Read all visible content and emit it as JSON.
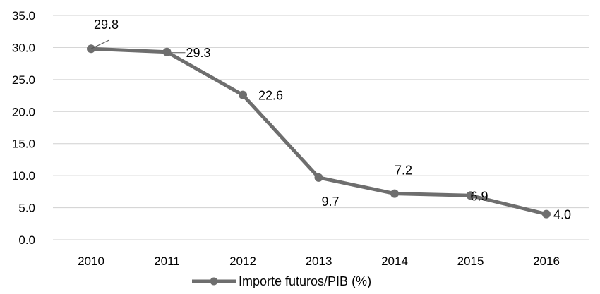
{
  "chart_data": {
    "type": "line",
    "categories": [
      "2010",
      "2011",
      "2012",
      "2013",
      "2014",
      "2015",
      "2016"
    ],
    "series": [
      {
        "name": "Importe futuros/PIB (%)",
        "values": [
          29.8,
          29.3,
          22.6,
          9.7,
          7.2,
          6.9,
          4.0
        ],
        "labels": [
          "29.8",
          "29.3",
          "22.6",
          "9.7",
          "7.2",
          "6.9",
          "4.0"
        ]
      }
    ],
    "y_ticks": [
      "0.0",
      "5.0",
      "10.0",
      "15.0",
      "20.0",
      "25.0",
      "30.0",
      "35.0"
    ],
    "ylim": [
      0,
      35
    ],
    "grid": true,
    "legend_position": "bottom",
    "colors": {
      "series": "#6e6e6e",
      "grid": "#d0d0d0"
    }
  }
}
